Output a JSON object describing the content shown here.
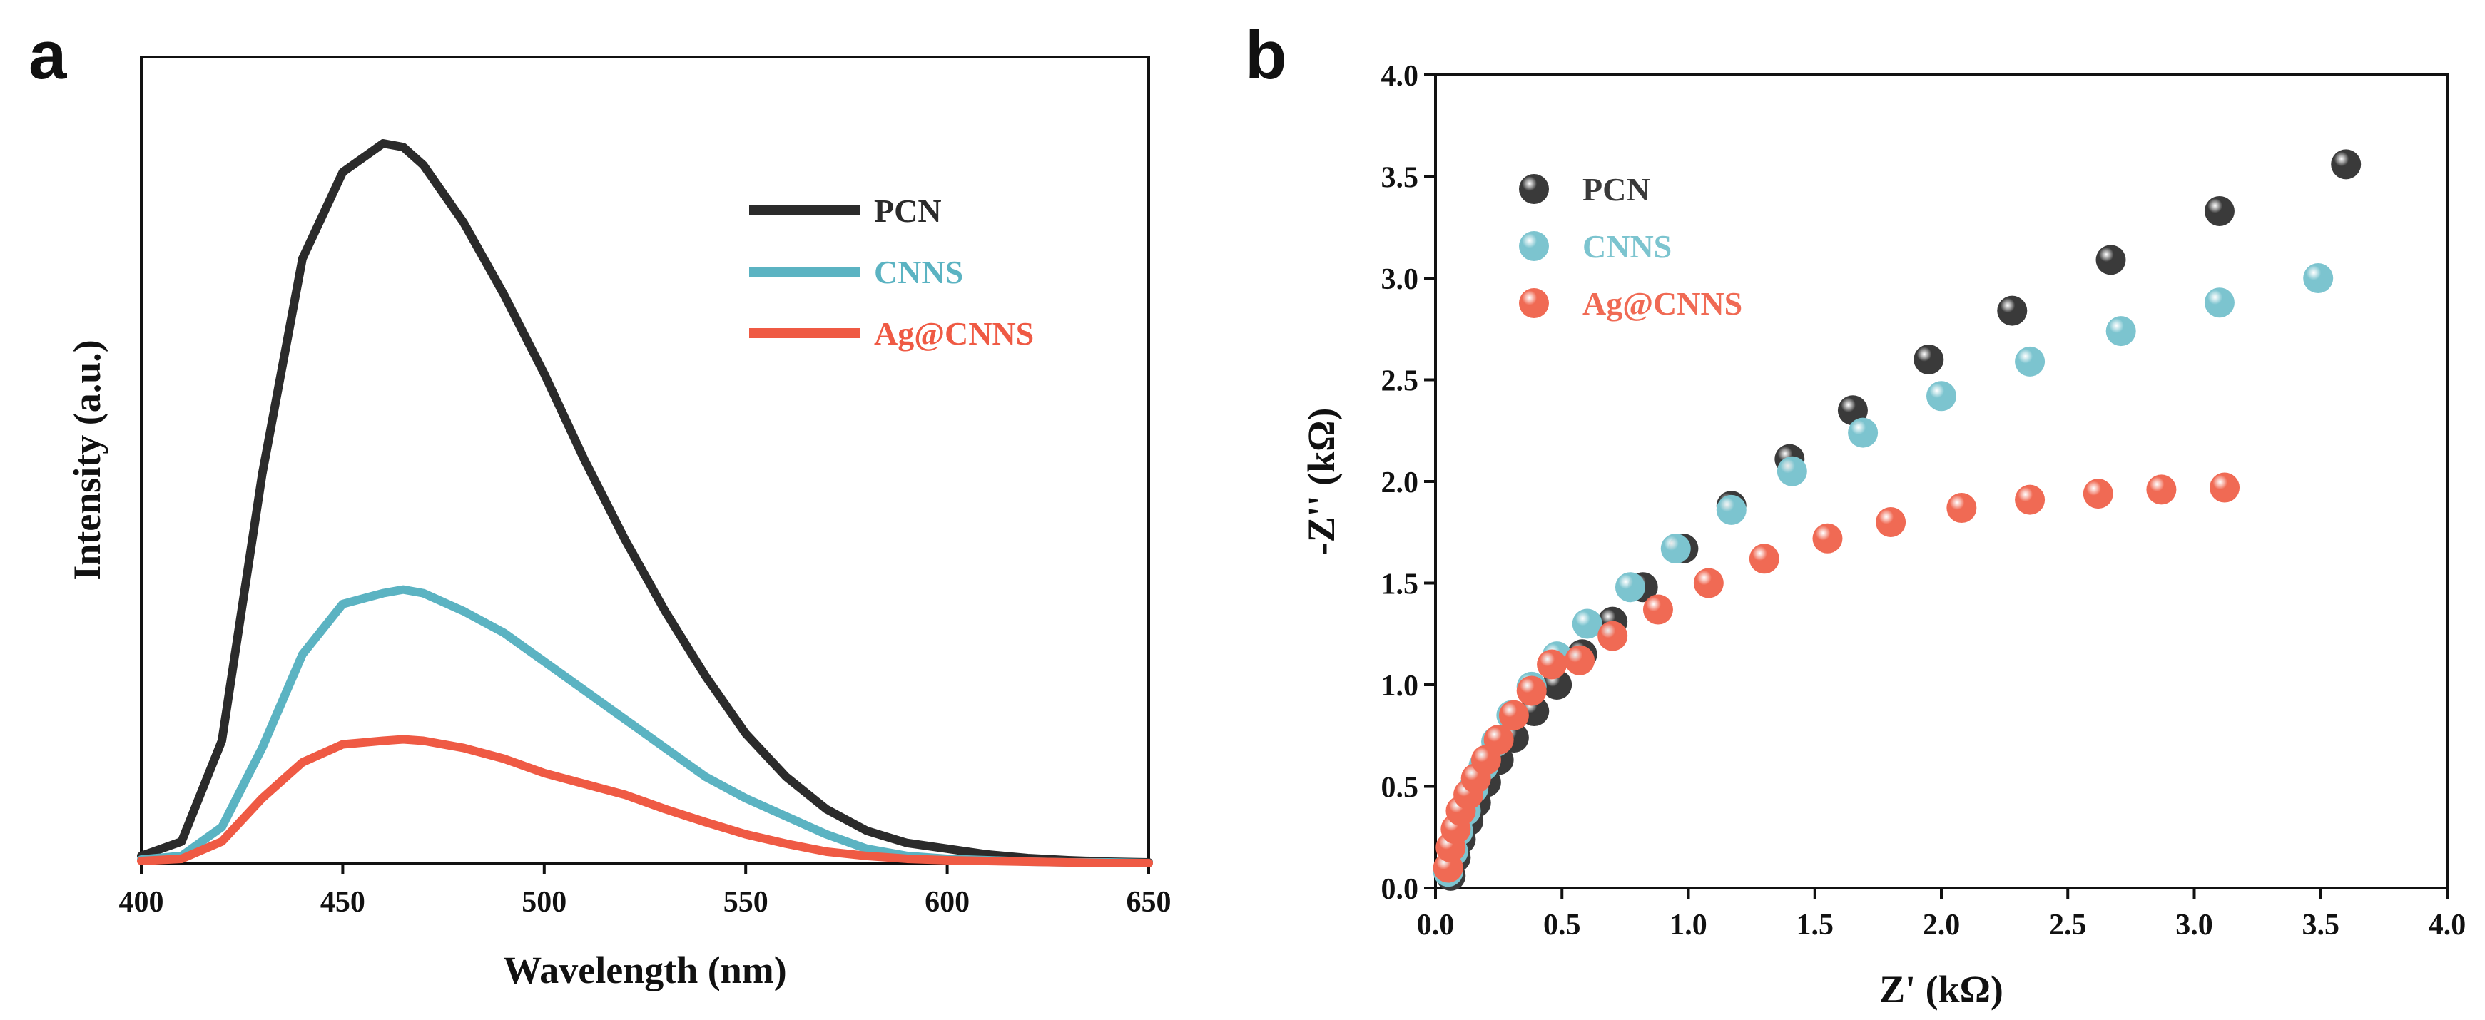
{
  "chart_data": [
    {
      "panel": "a",
      "type": "line",
      "xlabel": "Wavelength (nm)",
      "ylabel": "Intensity (a.u.)",
      "xlim": [
        400,
        650
      ],
      "ylim": [
        0,
        1.12
      ],
      "xticks": [
        "400",
        "450",
        "500",
        "550",
        "600",
        "650"
      ],
      "yticks_shown": false,
      "legend_position": "top-right",
      "x": [
        400,
        410,
        420,
        430,
        440,
        450,
        460,
        465,
        470,
        480,
        490,
        500,
        510,
        520,
        530,
        540,
        550,
        560,
        570,
        580,
        590,
        600,
        610,
        620,
        630,
        640,
        650
      ],
      "series": [
        {
          "name": "PCN",
          "color": "#2b2b2b",
          "values": [
            0.01,
            0.03,
            0.17,
            0.54,
            0.84,
            0.96,
            1.0,
            0.995,
            0.97,
            0.89,
            0.79,
            0.68,
            0.56,
            0.45,
            0.35,
            0.26,
            0.18,
            0.12,
            0.075,
            0.045,
            0.028,
            0.02,
            0.012,
            0.007,
            0.004,
            0.002,
            0.001
          ]
        },
        {
          "name": "CNNS",
          "color": "#5bb3c2",
          "values": [
            0.005,
            0.01,
            0.05,
            0.16,
            0.29,
            0.36,
            0.375,
            0.38,
            0.375,
            0.35,
            0.32,
            0.28,
            0.24,
            0.2,
            0.16,
            0.12,
            0.09,
            0.065,
            0.04,
            0.02,
            0.01,
            0.006,
            0.004,
            0.002,
            0.001,
            0.001,
            0.0
          ]
        },
        {
          "name": "Ag@CNNS",
          "color": "#ef5a44",
          "values": [
            0.003,
            0.006,
            0.03,
            0.09,
            0.14,
            0.165,
            0.17,
            0.172,
            0.17,
            0.16,
            0.145,
            0.125,
            0.11,
            0.095,
            0.075,
            0.057,
            0.04,
            0.027,
            0.016,
            0.01,
            0.006,
            0.004,
            0.003,
            0.002,
            0.001,
            0.0,
            0.0
          ]
        }
      ]
    },
    {
      "panel": "b",
      "type": "scatter",
      "xlabel": "Z' (kΩ)",
      "ylabel": "-Z'' (kΩ)",
      "xlim": [
        0.0,
        4.0
      ],
      "ylim": [
        0.0,
        4.0
      ],
      "xticks": [
        "0.0",
        "0.5",
        "1.0",
        "1.5",
        "2.0",
        "2.5",
        "3.0",
        "3.5",
        "4.0"
      ],
      "yticks": [
        "0.0",
        "0.5",
        "1.0",
        "1.5",
        "2.0",
        "2.5",
        "3.0",
        "3.5",
        "4.0"
      ],
      "legend_position": "top-left",
      "series": [
        {
          "name": "PCN",
          "color": "#3a3a3a",
          "x": [
            0.06,
            0.08,
            0.1,
            0.13,
            0.16,
            0.2,
            0.25,
            0.31,
            0.39,
            0.48,
            0.58,
            0.7,
            0.82,
            0.98,
            1.17,
            1.4,
            1.65,
            1.95,
            2.28,
            2.67,
            3.1,
            3.6
          ],
          "y": [
            0.06,
            0.15,
            0.24,
            0.33,
            0.42,
            0.52,
            0.63,
            0.74,
            0.87,
            1.0,
            1.15,
            1.31,
            1.48,
            1.67,
            1.88,
            2.11,
            2.35,
            2.6,
            2.84,
            3.09,
            3.33,
            3.56
          ]
        },
        {
          "name": "CNNS",
          "color": "#7cc4cf",
          "x": [
            0.05,
            0.07,
            0.09,
            0.12,
            0.15,
            0.19,
            0.24,
            0.3,
            0.38,
            0.48,
            0.6,
            0.77,
            0.95,
            1.17,
            1.41,
            1.69,
            2.0,
            2.35,
            2.71,
            3.1,
            3.49
          ],
          "y": [
            0.08,
            0.18,
            0.28,
            0.38,
            0.49,
            0.6,
            0.72,
            0.85,
            0.99,
            1.14,
            1.3,
            1.48,
            1.67,
            1.86,
            2.05,
            2.24,
            2.42,
            2.59,
            2.74,
            2.88,
            3.0
          ]
        },
        {
          "name": "Ag@CNNS",
          "color": "#f06a54",
          "x": [
            0.05,
            0.06,
            0.08,
            0.1,
            0.13,
            0.16,
            0.2,
            0.25,
            0.31,
            0.38,
            0.46,
            0.57,
            0.7,
            0.88,
            1.08,
            1.3,
            1.55,
            1.8,
            2.08,
            2.35,
            2.62,
            2.87,
            3.12
          ],
          "y": [
            0.1,
            0.2,
            0.29,
            0.38,
            0.46,
            0.54,
            0.63,
            0.73,
            0.85,
            0.97,
            1.1,
            1.12,
            1.24,
            1.37,
            1.5,
            1.62,
            1.72,
            1.8,
            1.87,
            1.91,
            1.94,
            1.96,
            1.97
          ]
        }
      ]
    }
  ]
}
